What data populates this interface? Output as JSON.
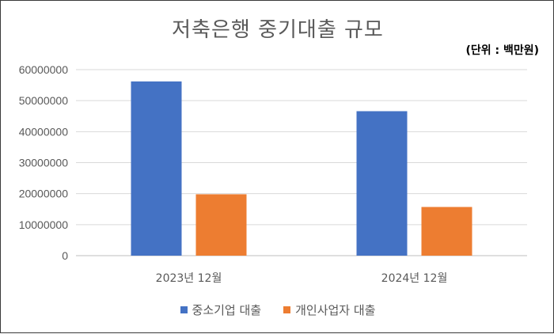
{
  "chart_data": {
    "type": "bar",
    "title": "저축은행 중기대출 규모",
    "unit_note": "(단위 : 백만원)",
    "categories": [
      "2023년 12월",
      "2024년 12월"
    ],
    "series": [
      {
        "name": "중소기업 대출",
        "color": "#4472C4",
        "values": [
          56200000,
          46600000
        ]
      },
      {
        "name": "개인사업자 대출",
        "color": "#ED7D31",
        "values": [
          19800000,
          15700000
        ]
      }
    ],
    "ylim": [
      0,
      60000000
    ],
    "yticks": [
      "0",
      "10000000",
      "20000000",
      "30000000",
      "40000000",
      "50000000",
      "60000000"
    ],
    "grid": true,
    "legend_position": "bottom"
  }
}
